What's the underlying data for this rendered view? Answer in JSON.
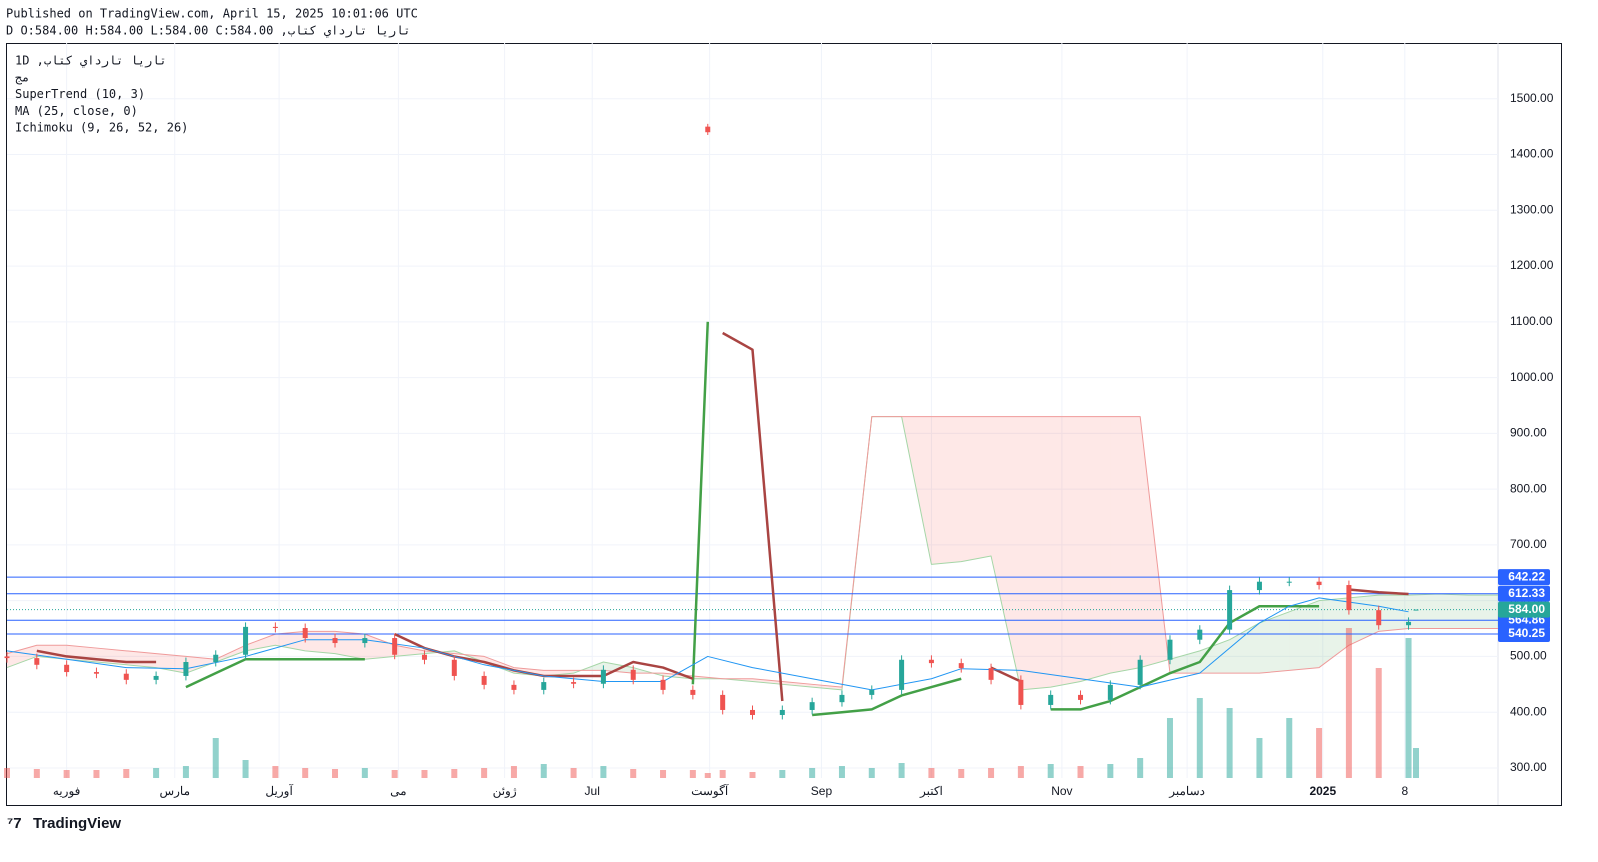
{
  "header": {
    "published": "Published on TradingView.com, April 15, 2025 10:01:06 UTC",
    "symbol_line": "تاريا تارداي كتاب, D O:584.00 H:584.00 L:584.00 C:584.00"
  },
  "footer": {
    "logo": "TradingView"
  },
  "chart_data": {
    "type": "candlestick",
    "legend": [
      "تاريا تارداي كتاب, 1D",
      "مج",
      "SuperTrend (10, 3)",
      "MA (25, close, 0)",
      "Ichimoku (9, 26, 52, 26)"
    ],
    "x": [
      0,
      8,
      16,
      24,
      32,
      40,
      48,
      56,
      64,
      72,
      80,
      88,
      96,
      104,
      112,
      120,
      128,
      136,
      144,
      152,
      160,
      168,
      176,
      184,
      188,
      192,
      200,
      208,
      216,
      224,
      232,
      240,
      248,
      256,
      264,
      272,
      280,
      288,
      296,
      304,
      312,
      320,
      328,
      336,
      344,
      352,
      360,
      368,
      376,
      378
    ],
    "open": [
      500,
      497,
      485,
      472,
      469,
      458,
      465,
      490,
      503,
      553,
      551,
      533,
      524,
      533,
      503,
      494,
      465,
      449,
      440,
      454,
      451,
      476,
      458,
      440,
      1450,
      431,
      404,
      395,
      404,
      418,
      431,
      440,
      494,
      488,
      479,
      458,
      413,
      431,
      422,
      449,
      494,
      530,
      548,
      619,
      634,
      634,
      628,
      583,
      556,
      584
    ],
    "high": [
      508,
      505,
      493,
      480,
      477,
      473,
      498,
      511,
      561,
      561,
      559,
      541,
      541,
      541,
      511,
      502,
      473,
      457,
      462,
      462,
      484,
      484,
      466,
      448,
      1455,
      439,
      412,
      412,
      426,
      439,
      448,
      502,
      502,
      496,
      487,
      466,
      439,
      439,
      457,
      502,
      538,
      556,
      627,
      642,
      642,
      642,
      636,
      591,
      570,
      584
    ],
    "low": [
      489,
      477,
      464,
      461,
      450,
      450,
      457,
      482,
      495,
      543,
      525,
      516,
      516,
      495,
      486,
      457,
      441,
      432,
      432,
      443,
      443,
      450,
      432,
      423,
      1435,
      396,
      387,
      387,
      396,
      410,
      423,
      432,
      480,
      471,
      450,
      405,
      405,
      414,
      414,
      441,
      486,
      522,
      540,
      611,
      626,
      620,
      575,
      548,
      548,
      584
    ],
    "close": [
      497,
      485,
      472,
      469,
      458,
      465,
      490,
      503,
      553,
      551,
      533,
      524,
      533,
      503,
      494,
      465,
      449,
      440,
      454,
      451,
      476,
      458,
      440,
      431,
      1440,
      404,
      395,
      404,
      418,
      431,
      440,
      494,
      488,
      479,
      458,
      413,
      431,
      422,
      449,
      494,
      530,
      548,
      619,
      634,
      634,
      628,
      583,
      556,
      562,
      584
    ],
    "volume": [
      10,
      9,
      8,
      8,
      9,
      10,
      12,
      40,
      18,
      12,
      10,
      9,
      10,
      8,
      8,
      9,
      10,
      12,
      14,
      10,
      12,
      9,
      8,
      8,
      5,
      8,
      6,
      8,
      10,
      12,
      10,
      15,
      10,
      9,
      10,
      12,
      14,
      12,
      14,
      20,
      60,
      80,
      70,
      40,
      60,
      50,
      150,
      110,
      140,
      30
    ],
    "up_color": "#26a69a",
    "down_color": "#ef5350",
    "xlim": [
      0,
      400
    ],
    "xticks": [
      {
        "value": 16,
        "label": "فوریه"
      },
      {
        "value": 45,
        "label": "مارس"
      },
      {
        "value": 73,
        "label": "آوریل"
      },
      {
        "value": 105,
        "label": "می"
      },
      {
        "value": 133.5,
        "label": "ژوئن"
      },
      {
        "value": 157,
        "label": "Jul"
      },
      {
        "value": 188.5,
        "label": "آگوست"
      },
      {
        "value": 218.5,
        "label": "Sep"
      },
      {
        "value": 248,
        "label": "اکتبر"
      },
      {
        "value": 283,
        "label": "Nov"
      },
      {
        "value": 316.6,
        "label": "دسامبر"
      },
      {
        "value": 353,
        "label": "2025"
      },
      {
        "value": 375,
        "label": "8"
      }
    ],
    "ylim": [
      282,
      1600
    ],
    "yticks": [
      {
        "value": 300,
        "label": "300.00"
      },
      {
        "value": 400,
        "label": "400.00"
      },
      {
        "value": 500,
        "label": "500.00"
      },
      {
        "value": 600,
        "label": "600.00"
      },
      {
        "value": 700,
        "label": "700.00"
      },
      {
        "value": 800,
        "label": "800.00"
      },
      {
        "value": 900,
        "label": "900.00"
      },
      {
        "value": 1000,
        "label": "1000.00"
      },
      {
        "value": 1100,
        "label": "1100.00"
      },
      {
        "value": 1200,
        "label": "1200.00"
      },
      {
        "value": 1300,
        "label": "1300.00"
      },
      {
        "value": 1400,
        "label": "1400.00"
      },
      {
        "value": 1500,
        "label": "1500.00"
      }
    ],
    "grid": true,
    "supertrend": {
      "x": [
        0,
        8,
        16,
        24,
        32,
        40,
        48,
        56,
        64,
        72,
        80,
        88,
        96,
        104,
        112,
        120,
        128,
        136,
        144,
        152,
        160,
        168,
        176,
        184,
        188,
        192,
        200,
        208,
        216,
        224,
        232,
        240,
        248,
        256,
        264,
        272,
        280,
        288,
        296,
        304,
        312,
        320,
        328,
        336,
        344,
        352,
        360,
        368,
        376
      ],
      "up": [
        485,
        null,
        null,
        null,
        null,
        null,
        445,
        470,
        495,
        495,
        495,
        495,
        495,
        null,
        null,
        null,
        null,
        null,
        null,
        null,
        null,
        null,
        null,
        450,
        1100,
        null,
        null,
        null,
        395,
        400,
        405,
        430,
        445,
        460,
        null,
        null,
        405,
        405,
        420,
        445,
        470,
        490,
        560,
        590,
        590,
        590,
        null,
        null,
        null
      ],
      "down": [
        null,
        510,
        500,
        495,
        490,
        490,
        null,
        null,
        null,
        null,
        null,
        null,
        null,
        540,
        515,
        500,
        490,
        475,
        465,
        465,
        465,
        490,
        480,
        460,
        null,
        1080,
        1050,
        420,
        null,
        null,
        null,
        null,
        null,
        null,
        480,
        455,
        null,
        null,
        null,
        null,
        null,
        null,
        null,
        null,
        null,
        null,
        620,
        615,
        612
      ],
      "up_color": "#43a047",
      "down_color": "#a94442"
    },
    "ma": {
      "x": [
        0,
        16,
        32,
        48,
        64,
        80,
        96,
        112,
        128,
        144,
        160,
        176,
        188,
        200,
        216,
        232,
        248,
        256,
        272,
        288,
        304,
        320,
        336,
        344,
        352,
        368,
        376
      ],
      "values": [
        510,
        495,
        480,
        478,
        500,
        530,
        530,
        515,
        485,
        465,
        455,
        455,
        500,
        480,
        460,
        440,
        460,
        478,
        475,
        460,
        445,
        470,
        560,
        590,
        605,
        590,
        580
      ],
      "color": "#2196f3"
    },
    "ichimoku": {
      "x": [
        0,
        8,
        16,
        24,
        32,
        40,
        48,
        56,
        64,
        72,
        80,
        88,
        96,
        104,
        112,
        120,
        128,
        136,
        144,
        152,
        160,
        168,
        176,
        184,
        192,
        200,
        208,
        216,
        224,
        232,
        240,
        248,
        256,
        264,
        272,
        280,
        288,
        296,
        304,
        312,
        320,
        328,
        336,
        344,
        352,
        360,
        368,
        376,
        384,
        392,
        400
      ],
      "span_a": [
        480,
        500,
        495,
        490,
        485,
        480,
        470,
        490,
        510,
        520,
        510,
        505,
        495,
        500,
        505,
        510,
        490,
        470,
        465,
        470,
        490,
        480,
        465,
        460,
        460,
        455,
        450,
        445,
        440,
        930,
        930,
        665,
        670,
        680,
        440,
        445,
        455,
        470,
        480,
        495,
        510,
        530,
        560,
        580,
        600,
        605,
        610,
        610,
        612,
        610,
        610
      ],
      "span_b": [
        505,
        520,
        520,
        515,
        510,
        505,
        500,
        495,
        520,
        540,
        545,
        545,
        540,
        520,
        510,
        505,
        500,
        480,
        475,
        475,
        475,
        470,
        470,
        465,
        460,
        460,
        455,
        450,
        445,
        930,
        930,
        930,
        930,
        930,
        930,
        930,
        930,
        930,
        930,
        470,
        470,
        470,
        470,
        475,
        480,
        520,
        545,
        550,
        550,
        550,
        550
      ],
      "color_a": "#a5d6a7",
      "color_b": "#ef9a9a"
    },
    "price_lines": {
      "values": [
        642.22,
        612.33,
        564.86,
        540.25
      ],
      "color": "#2962ff"
    },
    "last_price": {
      "value": 584,
      "label": "584.00",
      "color": "#26a69a"
    }
  }
}
